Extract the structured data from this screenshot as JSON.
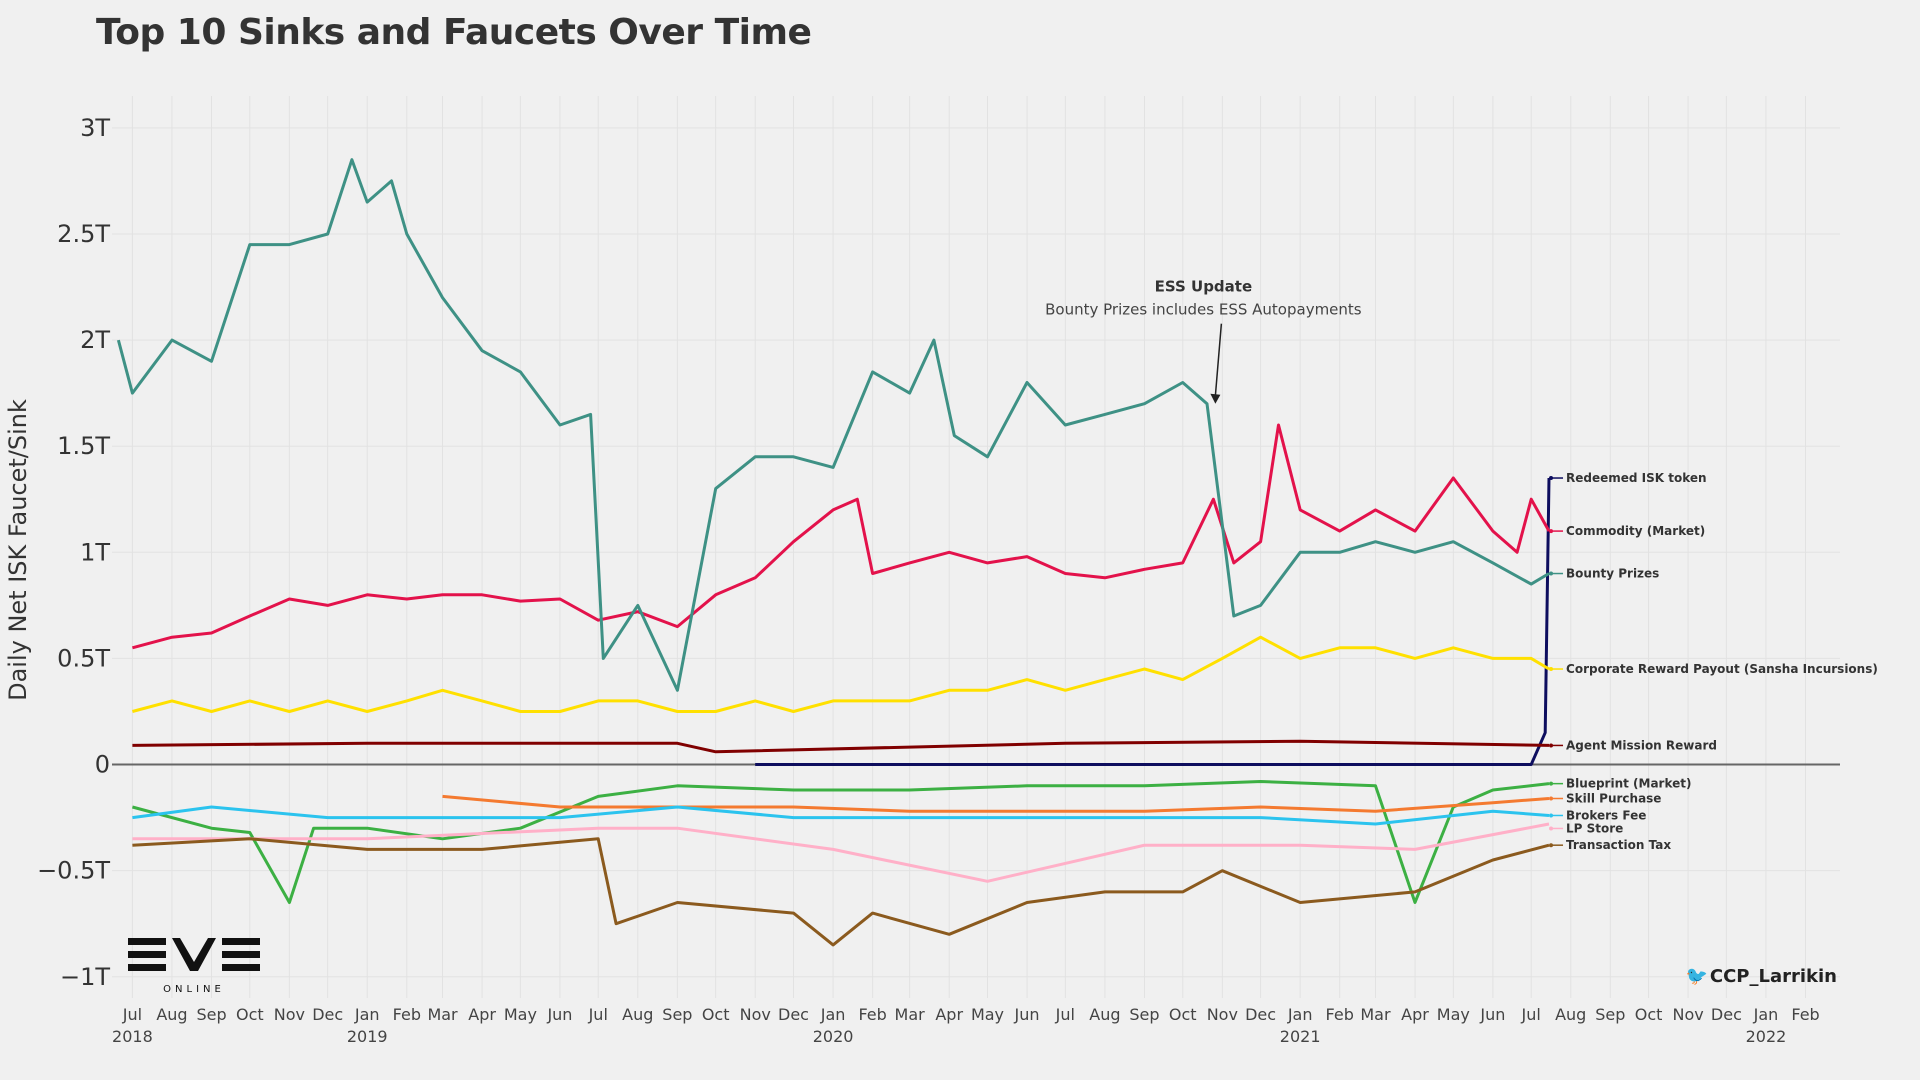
{
  "chart_data": {
    "type": "line",
    "title": "Top 10 Sinks and Faucets Over Time",
    "ylabel": "Daily Net ISK Faucet/Sink",
    "xlabel": "",
    "ylim": [
      -1.1,
      3.15
    ],
    "xlim": [
      "2018-06-15",
      "2022-02-28"
    ],
    "grid": true,
    "y_ticks": [
      {
        "value": 3,
        "label": "3T"
      },
      {
        "value": 2.5,
        "label": "2.5T"
      },
      {
        "value": 2,
        "label": "2T"
      },
      {
        "value": 1.5,
        "label": "1.5T"
      },
      {
        "value": 1,
        "label": "1T"
      },
      {
        "value": 0.5,
        "label": "0.5T"
      },
      {
        "value": 0,
        "label": "0"
      },
      {
        "value": -0.5,
        "label": "−0.5T"
      },
      {
        "value": -1,
        "label": "−1T"
      }
    ],
    "x_month_ticks": [
      {
        "date": "2018-07-01",
        "label": "Jul"
      },
      {
        "date": "2018-08-01",
        "label": "Aug"
      },
      {
        "date": "2018-09-01",
        "label": "Sep"
      },
      {
        "date": "2018-10-01",
        "label": "Oct"
      },
      {
        "date": "2018-11-01",
        "label": "Nov"
      },
      {
        "date": "2018-12-01",
        "label": "Dec"
      },
      {
        "date": "2019-01-01",
        "label": "Jan"
      },
      {
        "date": "2019-02-01",
        "label": "Feb"
      },
      {
        "date": "2019-03-01",
        "label": "Mar"
      },
      {
        "date": "2019-04-01",
        "label": "Apr"
      },
      {
        "date": "2019-05-01",
        "label": "May"
      },
      {
        "date": "2019-06-01",
        "label": "Jun"
      },
      {
        "date": "2019-07-01",
        "label": "Jul"
      },
      {
        "date": "2019-08-01",
        "label": "Aug"
      },
      {
        "date": "2019-09-01",
        "label": "Sep"
      },
      {
        "date": "2019-10-01",
        "label": "Oct"
      },
      {
        "date": "2019-11-01",
        "label": "Nov"
      },
      {
        "date": "2019-12-01",
        "label": "Dec"
      },
      {
        "date": "2020-01-01",
        "label": "Jan"
      },
      {
        "date": "2020-02-01",
        "label": "Feb"
      },
      {
        "date": "2020-03-01",
        "label": "Mar"
      },
      {
        "date": "2020-04-01",
        "label": "Apr"
      },
      {
        "date": "2020-05-01",
        "label": "May"
      },
      {
        "date": "2020-06-01",
        "label": "Jun"
      },
      {
        "date": "2020-07-01",
        "label": "Jul"
      },
      {
        "date": "2020-08-01",
        "label": "Aug"
      },
      {
        "date": "2020-09-01",
        "label": "Sep"
      },
      {
        "date": "2020-10-01",
        "label": "Oct"
      },
      {
        "date": "2020-11-01",
        "label": "Nov"
      },
      {
        "date": "2020-12-01",
        "label": "Dec"
      },
      {
        "date": "2021-01-01",
        "label": "Jan"
      },
      {
        "date": "2021-02-01",
        "label": "Feb"
      },
      {
        "date": "2021-03-01",
        "label": "Mar"
      },
      {
        "date": "2021-04-01",
        "label": "Apr"
      },
      {
        "date": "2021-05-01",
        "label": "May"
      },
      {
        "date": "2021-06-01",
        "label": "Jun"
      },
      {
        "date": "2021-07-01",
        "label": "Jul"
      },
      {
        "date": "2021-08-01",
        "label": "Aug"
      },
      {
        "date": "2021-09-01",
        "label": "Sep"
      },
      {
        "date": "2021-10-01",
        "label": "Oct"
      },
      {
        "date": "2021-11-01",
        "label": "Nov"
      },
      {
        "date": "2021-12-01",
        "label": "Dec"
      },
      {
        "date": "2022-01-01",
        "label": "Jan"
      },
      {
        "date": "2022-02-01",
        "label": "Feb"
      }
    ],
    "x_year_ticks": [
      {
        "date": "2018-07-01",
        "label": "2018"
      },
      {
        "date": "2019-01-01",
        "label": "2019"
      },
      {
        "date": "2020-01-01",
        "label": "2020"
      },
      {
        "date": "2021-01-01",
        "label": "2021"
      },
      {
        "date": "2022-01-01",
        "label": "2022"
      }
    ],
    "series": [
      {
        "name": "Redeemed ISK token",
        "color": "#0d0d5e",
        "points": [
          [
            "2019-11-01",
            0
          ],
          [
            "2021-07-01",
            0
          ],
          [
            "2021-07-12",
            0.15
          ],
          [
            "2021-07-15",
            1.35
          ]
        ]
      },
      {
        "name": "Commodity (Market)",
        "color": "#e3124b",
        "points": [
          [
            "2018-07-01",
            0.55
          ],
          [
            "2018-08-01",
            0.6
          ],
          [
            "2018-09-01",
            0.62
          ],
          [
            "2018-10-01",
            0.7
          ],
          [
            "2018-11-01",
            0.78
          ],
          [
            "2018-12-01",
            0.75
          ],
          [
            "2019-01-01",
            0.8
          ],
          [
            "2019-02-01",
            0.78
          ],
          [
            "2019-03-01",
            0.8
          ],
          [
            "2019-04-01",
            0.8
          ],
          [
            "2019-05-01",
            0.77
          ],
          [
            "2019-06-01",
            0.78
          ],
          [
            "2019-07-01",
            0.68
          ],
          [
            "2019-08-01",
            0.72
          ],
          [
            "2019-09-01",
            0.65
          ],
          [
            "2019-10-01",
            0.8
          ],
          [
            "2019-11-01",
            0.88
          ],
          [
            "2019-12-01",
            1.05
          ],
          [
            "2020-01-01",
            1.2
          ],
          [
            "2020-01-20",
            1.25
          ],
          [
            "2020-02-01",
            0.9
          ],
          [
            "2020-03-01",
            0.95
          ],
          [
            "2020-04-01",
            1.0
          ],
          [
            "2020-05-01",
            0.95
          ],
          [
            "2020-06-01",
            0.98
          ],
          [
            "2020-07-01",
            0.9
          ],
          [
            "2020-08-01",
            0.88
          ],
          [
            "2020-09-01",
            0.92
          ],
          [
            "2020-10-01",
            0.95
          ],
          [
            "2020-10-25",
            1.25
          ],
          [
            "2020-11-10",
            0.95
          ],
          [
            "2020-12-01",
            1.05
          ],
          [
            "2020-12-15",
            1.6
          ],
          [
            "2021-01-01",
            1.2
          ],
          [
            "2021-02-01",
            1.1
          ],
          [
            "2021-03-01",
            1.2
          ],
          [
            "2021-04-01",
            1.1
          ],
          [
            "2021-05-01",
            1.35
          ],
          [
            "2021-06-01",
            1.1
          ],
          [
            "2021-06-20",
            1.0
          ],
          [
            "2021-07-01",
            1.25
          ],
          [
            "2021-07-15",
            1.1
          ]
        ]
      },
      {
        "name": "Bounty Prizes",
        "color": "#3e9185",
        "points": [
          [
            "2018-06-20",
            2.0
          ],
          [
            "2018-07-01",
            1.75
          ],
          [
            "2018-08-01",
            2.0
          ],
          [
            "2018-09-01",
            1.9
          ],
          [
            "2018-10-01",
            2.45
          ],
          [
            "2018-11-01",
            2.45
          ],
          [
            "2018-12-01",
            2.5
          ],
          [
            "2018-12-20",
            2.85
          ],
          [
            "2019-01-01",
            2.65
          ],
          [
            "2019-01-20",
            2.75
          ],
          [
            "2019-02-01",
            2.5
          ],
          [
            "2019-03-01",
            2.2
          ],
          [
            "2019-04-01",
            1.95
          ],
          [
            "2019-05-01",
            1.85
          ],
          [
            "2019-06-01",
            1.6
          ],
          [
            "2019-06-25",
            1.65
          ],
          [
            "2019-07-05",
            0.5
          ],
          [
            "2019-08-01",
            0.75
          ],
          [
            "2019-09-01",
            0.35
          ],
          [
            "2019-10-01",
            1.3
          ],
          [
            "2019-11-01",
            1.45
          ],
          [
            "2019-12-01",
            1.45
          ],
          [
            "2020-01-01",
            1.4
          ],
          [
            "2020-02-01",
            1.85
          ],
          [
            "2020-03-01",
            1.75
          ],
          [
            "2020-03-20",
            2.0
          ],
          [
            "2020-04-05",
            1.55
          ],
          [
            "2020-05-01",
            1.45
          ],
          [
            "2020-06-01",
            1.8
          ],
          [
            "2020-07-01",
            1.6
          ],
          [
            "2020-08-01",
            1.65
          ],
          [
            "2020-09-01",
            1.7
          ],
          [
            "2020-10-01",
            1.8
          ],
          [
            "2020-10-20",
            1.7
          ],
          [
            "2020-11-10",
            0.7
          ],
          [
            "2020-12-01",
            0.75
          ],
          [
            "2021-01-01",
            1.0
          ],
          [
            "2021-02-01",
            1.0
          ],
          [
            "2021-03-01",
            1.05
          ],
          [
            "2021-04-01",
            1.0
          ],
          [
            "2021-05-01",
            1.05
          ],
          [
            "2021-06-01",
            0.95
          ],
          [
            "2021-07-01",
            0.85
          ],
          [
            "2021-07-15",
            0.9
          ]
        ]
      },
      {
        "name": "Corporate Reward Payout (Sansha Incursions)",
        "color": "#ffe000",
        "points": [
          [
            "2018-07-01",
            0.25
          ],
          [
            "2018-08-01",
            0.3
          ],
          [
            "2018-09-01",
            0.25
          ],
          [
            "2018-10-01",
            0.3
          ],
          [
            "2018-11-01",
            0.25
          ],
          [
            "2018-12-01",
            0.3
          ],
          [
            "2019-01-01",
            0.25
          ],
          [
            "2019-02-01",
            0.3
          ],
          [
            "2019-03-01",
            0.35
          ],
          [
            "2019-04-01",
            0.3
          ],
          [
            "2019-05-01",
            0.25
          ],
          [
            "2019-06-01",
            0.25
          ],
          [
            "2019-07-01",
            0.3
          ],
          [
            "2019-08-01",
            0.3
          ],
          [
            "2019-09-01",
            0.25
          ],
          [
            "2019-10-01",
            0.25
          ],
          [
            "2019-11-01",
            0.3
          ],
          [
            "2019-12-01",
            0.25
          ],
          [
            "2020-01-01",
            0.3
          ],
          [
            "2020-02-01",
            0.3
          ],
          [
            "2020-03-01",
            0.3
          ],
          [
            "2020-04-01",
            0.35
          ],
          [
            "2020-05-01",
            0.35
          ],
          [
            "2020-06-01",
            0.4
          ],
          [
            "2020-07-01",
            0.35
          ],
          [
            "2020-08-01",
            0.4
          ],
          [
            "2020-09-01",
            0.45
          ],
          [
            "2020-10-01",
            0.4
          ],
          [
            "2020-11-01",
            0.5
          ],
          [
            "2020-12-01",
            0.6
          ],
          [
            "2021-01-01",
            0.5
          ],
          [
            "2021-02-01",
            0.55
          ],
          [
            "2021-03-01",
            0.55
          ],
          [
            "2021-04-01",
            0.5
          ],
          [
            "2021-05-01",
            0.55
          ],
          [
            "2021-06-01",
            0.5
          ],
          [
            "2021-07-01",
            0.5
          ],
          [
            "2021-07-15",
            0.45
          ]
        ]
      },
      {
        "name": "Agent Mission Reward",
        "color": "#800000",
        "points": [
          [
            "2018-07-01",
            0.09
          ],
          [
            "2019-01-01",
            0.1
          ],
          [
            "2019-09-01",
            0.1
          ],
          [
            "2019-10-01",
            0.06
          ],
          [
            "2020-07-01",
            0.1
          ],
          [
            "2021-01-01",
            0.11
          ],
          [
            "2021-07-15",
            0.09
          ]
        ]
      },
      {
        "name": "Blueprint (Market)",
        "color": "#3cb043",
        "points": [
          [
            "2018-07-01",
            -0.2
          ],
          [
            "2018-09-01",
            -0.3
          ],
          [
            "2018-10-01",
            -0.32
          ],
          [
            "2018-11-01",
            -0.65
          ],
          [
            "2018-11-20",
            -0.3
          ],
          [
            "2019-01-01",
            -0.3
          ],
          [
            "2019-03-01",
            -0.35
          ],
          [
            "2019-05-01",
            -0.3
          ],
          [
            "2019-07-01",
            -0.15
          ],
          [
            "2019-09-01",
            -0.1
          ],
          [
            "2019-12-01",
            -0.12
          ],
          [
            "2020-03-01",
            -0.12
          ],
          [
            "2020-06-01",
            -0.1
          ],
          [
            "2020-09-01",
            -0.1
          ],
          [
            "2020-12-01",
            -0.08
          ],
          [
            "2021-03-01",
            -0.1
          ],
          [
            "2021-04-01",
            -0.65
          ],
          [
            "2021-05-01",
            -0.2
          ],
          [
            "2021-06-01",
            -0.12
          ],
          [
            "2021-07-15",
            -0.09
          ]
        ]
      },
      {
        "name": "Skill Purchase",
        "color": "#f47a30",
        "points": [
          [
            "2019-03-01",
            -0.15
          ],
          [
            "2019-06-01",
            -0.2
          ],
          [
            "2019-09-01",
            -0.2
          ],
          [
            "2019-12-01",
            -0.2
          ],
          [
            "2020-03-01",
            -0.22
          ],
          [
            "2020-06-01",
            -0.22
          ],
          [
            "2020-09-01",
            -0.22
          ],
          [
            "2020-12-01",
            -0.2
          ],
          [
            "2021-03-01",
            -0.22
          ],
          [
            "2021-06-01",
            -0.18
          ],
          [
            "2021-07-15",
            -0.16
          ]
        ]
      },
      {
        "name": "Brokers Fee",
        "color": "#2bc3ee",
        "points": [
          [
            "2018-07-01",
            -0.25
          ],
          [
            "2018-09-01",
            -0.2
          ],
          [
            "2018-12-01",
            -0.25
          ],
          [
            "2019-03-01",
            -0.25
          ],
          [
            "2019-06-01",
            -0.25
          ],
          [
            "2019-09-01",
            -0.2
          ],
          [
            "2019-12-01",
            -0.25
          ],
          [
            "2020-03-01",
            -0.25
          ],
          [
            "2020-06-01",
            -0.25
          ],
          [
            "2020-09-01",
            -0.25
          ],
          [
            "2020-12-01",
            -0.25
          ],
          [
            "2021-03-01",
            -0.28
          ],
          [
            "2021-06-01",
            -0.22
          ],
          [
            "2021-07-15",
            -0.24
          ]
        ]
      },
      {
        "name": "LP Store",
        "color": "#ffb0c8",
        "points": [
          [
            "2018-07-01",
            -0.35
          ],
          [
            "2019-01-01",
            -0.35
          ],
          [
            "2019-07-01",
            -0.3
          ],
          [
            "2019-09-01",
            -0.3
          ],
          [
            "2020-01-01",
            -0.4
          ],
          [
            "2020-05-01",
            -0.55
          ],
          [
            "2020-09-01",
            -0.38
          ],
          [
            "2021-01-01",
            -0.38
          ],
          [
            "2021-04-01",
            -0.4
          ],
          [
            "2021-07-15",
            -0.28
          ]
        ]
      },
      {
        "name": "Transaction Tax",
        "color": "#8b5a1e",
        "points": [
          [
            "2018-07-01",
            -0.38
          ],
          [
            "2018-10-01",
            -0.35
          ],
          [
            "2019-01-01",
            -0.4
          ],
          [
            "2019-04-01",
            -0.4
          ],
          [
            "2019-07-01",
            -0.35
          ],
          [
            "2019-07-15",
            -0.75
          ],
          [
            "2019-09-01",
            -0.65
          ],
          [
            "2019-12-01",
            -0.7
          ],
          [
            "2020-01-01",
            -0.85
          ],
          [
            "2020-02-01",
            -0.7
          ],
          [
            "2020-04-01",
            -0.8
          ],
          [
            "2020-06-01",
            -0.65
          ],
          [
            "2020-08-01",
            -0.6
          ],
          [
            "2020-10-01",
            -0.6
          ],
          [
            "2020-11-01",
            -0.5
          ],
          [
            "2021-01-01",
            -0.65
          ],
          [
            "2021-04-01",
            -0.6
          ],
          [
            "2021-06-01",
            -0.45
          ],
          [
            "2021-07-15",
            -0.38
          ]
        ]
      }
    ],
    "annotations": [
      {
        "title": "ESS Update",
        "text": "Bounty Prizes includes ESS Autopayments",
        "date": "2020-10-25",
        "value": 1.7
      }
    ]
  },
  "logo": {
    "main": "EVE",
    "sub": "ONLINE"
  },
  "credit": {
    "handle": "CCP_Larrikin",
    "icon": "twitter-bird-icon"
  }
}
